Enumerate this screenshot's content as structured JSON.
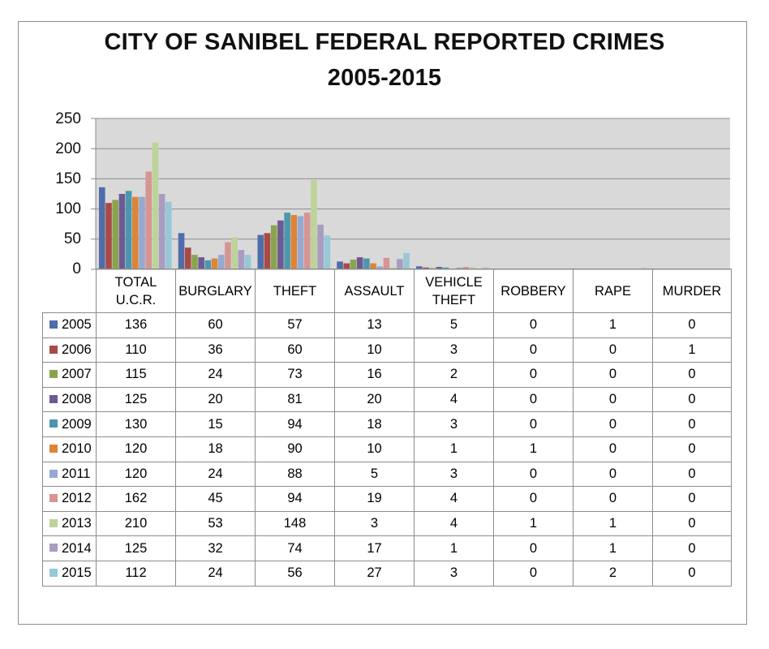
{
  "title_line1": "CITY OF SANIBEL FEDERAL REPORTED CRIMES",
  "title_line2": "2005-2015",
  "y_ticks": [
    "250",
    "200",
    "150",
    "100",
    "50",
    "0"
  ],
  "colors": [
    "#4f6da8",
    "#a94a47",
    "#8aa44e",
    "#6d5a92",
    "#4b98ad",
    "#dc8438",
    "#95a9d1",
    "#d69593",
    "#bdd39a",
    "#a99cc0",
    "#97c8d8"
  ],
  "chart_data": {
    "type": "bar",
    "title": "CITY OF SANIBEL FEDERAL REPORTED CRIMES 2005-2015",
    "categories": [
      "TOTAL U.C.R.",
      "BURGLARY",
      "THEFT",
      "ASSAULT",
      "VEHICLE THEFT",
      "ROBBERY",
      "RAPE",
      "MURDER"
    ],
    "category_lines": [
      [
        "TOTAL",
        "U.C.R."
      ],
      [
        "BURGLARY"
      ],
      [
        "THEFT"
      ],
      [
        "ASSAULT"
      ],
      [
        "VEHICLE",
        "THEFT"
      ],
      [
        "ROBBERY"
      ],
      [
        "RAPE"
      ],
      [
        "MURDER"
      ]
    ],
    "ylim": [
      0,
      250
    ],
    "y_ticks": [
      0,
      50,
      100,
      150,
      200,
      250
    ],
    "grid": true,
    "legend": "data-table-left",
    "series": [
      {
        "name": "2005",
        "values": [
          136,
          60,
          57,
          13,
          5,
          0,
          1,
          0
        ]
      },
      {
        "name": "2006",
        "values": [
          110,
          36,
          60,
          10,
          3,
          0,
          0,
          1
        ]
      },
      {
        "name": "2007",
        "values": [
          115,
          24,
          73,
          16,
          2,
          0,
          0,
          0
        ]
      },
      {
        "name": "2008",
        "values": [
          125,
          20,
          81,
          20,
          4,
          0,
          0,
          0
        ]
      },
      {
        "name": "2009",
        "values": [
          130,
          15,
          94,
          18,
          3,
          0,
          0,
          0
        ]
      },
      {
        "name": "2010",
        "values": [
          120,
          18,
          90,
          10,
          1,
          1,
          0,
          0
        ]
      },
      {
        "name": "2011",
        "values": [
          120,
          24,
          88,
          5,
          3,
          0,
          0,
          0
        ]
      },
      {
        "name": "2012",
        "values": [
          162,
          45,
          94,
          19,
          4,
          0,
          0,
          0
        ]
      },
      {
        "name": "2013",
        "values": [
          210,
          53,
          148,
          3,
          4,
          1,
          1,
          0
        ]
      },
      {
        "name": "2014",
        "values": [
          125,
          32,
          74,
          17,
          1,
          0,
          1,
          0
        ]
      },
      {
        "name": "2015",
        "values": [
          112,
          24,
          56,
          27,
          3,
          0,
          2,
          0
        ]
      }
    ]
  }
}
